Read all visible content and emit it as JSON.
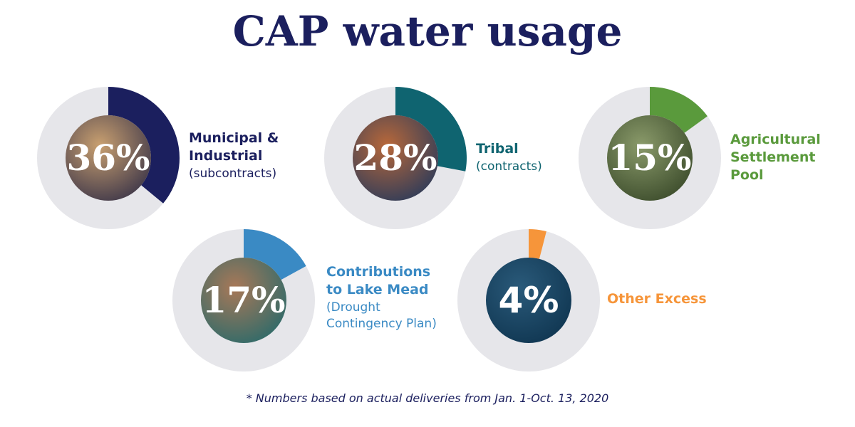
{
  "chart_data": {
    "type": "pie",
    "title": "CAP water usage",
    "unit": "%",
    "categories": [
      "Municipal & Industrial (subcontracts)",
      "Tribal (contracts)",
      "Agricultural Settlement Pool",
      "Contributions to Lake Mead (Drought Contingency Plan)",
      "Other Excess"
    ],
    "values": [
      36,
      28,
      15,
      17,
      4
    ],
    "items": [
      {
        "value": 36,
        "value_label": "36%",
        "label_lines": [
          "Municipal &",
          "Industrial"
        ],
        "sub": "(subcontracts)",
        "color": "#1b1f5e",
        "image_tint": [
          "#c9a070",
          "#3a3448"
        ]
      },
      {
        "value": 28,
        "value_label": "28%",
        "label_lines": [
          "Tribal"
        ],
        "sub": "(contracts)",
        "color": "#0f6470",
        "image_tint": [
          "#b8683a",
          "#2a3a5a"
        ]
      },
      {
        "value": 15,
        "value_label": "15%",
        "label_lines": [
          "Agricultural",
          "Settlement",
          "Pool"
        ],
        "sub": "",
        "color": "#5a9a3c",
        "image_tint": [
          "#8a9a6a",
          "#3a4a2a"
        ]
      },
      {
        "value": 17,
        "value_label": "17%",
        "label_lines": [
          "Contributions",
          "to Lake Mead"
        ],
        "sub_lines": [
          "(Drought",
          "Contingency Plan)"
        ],
        "color": "#3a8ac4",
        "image_tint": [
          "#a87858",
          "#2a6a6a"
        ]
      },
      {
        "value": 4,
        "value_label": "4%",
        "label_lines": [
          "Other Excess"
        ],
        "sub": "",
        "color": "#f6953a",
        "image_tint": [
          "#2a5a7a",
          "#0f3550"
        ]
      }
    ]
  },
  "footnote": "* Numbers based on actual deliveries from Jan. 1-Oct. 13, 2020"
}
